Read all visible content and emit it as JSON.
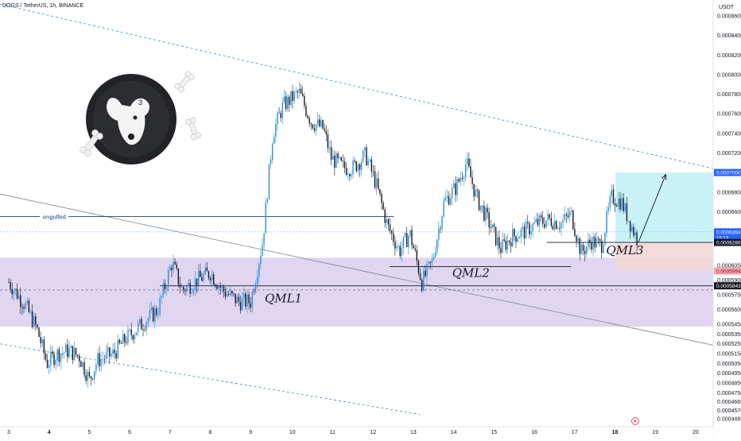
{
  "header": {
    "symbol_line": "DOGS / TetherUS, 1h, BINANCE",
    "currency": "USDT"
  },
  "colors": {
    "up": "#2a8fd8",
    "down": "#131722",
    "zone": "#d6c8ee",
    "target": "#bfeef7",
    "stop": "#f3d6d6",
    "channel_dotted": "#2a8fd8",
    "diagonal": "#8a8f99",
    "engulfed_line": "#1f3a8a",
    "badge_blue": "#2962ff",
    "badge_dark": "#131722",
    "badge_red": "#f7a7ae"
  },
  "chart_data": {
    "type": "candlestick",
    "title": "DOGS / TetherUS, 1h, BINANCE",
    "xlabel": "",
    "ylabel": "USDT",
    "x_ticks": [
      "3",
      "4",
      "5",
      "6",
      "7",
      "8",
      "9",
      "10",
      "11",
      "12",
      "13",
      "14",
      "15",
      "16",
      "17",
      "18",
      "19",
      "20"
    ],
    "y_ticks": [
      "0.0008600",
      "0.0008400",
      "0.0008200",
      "0.0008000",
      "0.0007800",
      "0.0007600",
      "0.0007400",
      "0.0007200",
      "0.0006800",
      "0.0006600",
      "0.0006400",
      "0.0006050",
      "0.0005900",
      "0.0005750",
      "0.0005600",
      "0.0005450",
      "0.0005350",
      "0.0005250",
      "0.0005150",
      "0.0005050",
      "0.0004950",
      "0.0004850",
      "0.0004750",
      "0.0004660",
      "0.0004570",
      "0.0004485"
    ],
    "price_badges": [
      {
        "label": "0.0007000",
        "style": "blue"
      },
      {
        "label": "0.0006394",
        "sub": "15:13",
        "style": "blue"
      },
      {
        "label": "0.0006286",
        "style": "dark"
      },
      {
        "label": "0.0005994",
        "style": "red"
      },
      {
        "label": "0.0005843",
        "style": "dark"
      }
    ],
    "annotations": [
      "engulfed",
      "QML1",
      "QML2",
      "QML3"
    ],
    "day_range": [
      3,
      20
    ],
    "key_levels": {
      "engulfed": 0.000655,
      "qml1": 0.0005843,
      "qml2": 0.000604,
      "qml3": 0.0006286,
      "entry": 0.0006286,
      "target": 0.0007,
      "stop": 0.0005994,
      "zone_top": 0.000613,
      "zone_bottom": 0.0005425
    },
    "price_path": [
      {
        "d": 3.0,
        "p": 0.000588
      },
      {
        "d": 3.4,
        "p": 0.000565
      },
      {
        "d": 3.7,
        "p": 0.00054
      },
      {
        "d": 3.95,
        "p": 0.000505
      },
      {
        "d": 4.2,
        "p": 0.000515
      },
      {
        "d": 4.5,
        "p": 0.000518
      },
      {
        "d": 4.75,
        "p": 0.000512
      },
      {
        "d": 5.0,
        "p": 0.000488
      },
      {
        "d": 5.2,
        "p": 0.000508
      },
      {
        "d": 5.6,
        "p": 0.000515
      },
      {
        "d": 5.9,
        "p": 0.00053
      },
      {
        "d": 6.3,
        "p": 0.000545
      },
      {
        "d": 6.7,
        "p": 0.00056
      },
      {
        "d": 7.05,
        "p": 0.000608
      },
      {
        "d": 7.3,
        "p": 0.00058
      },
      {
        "d": 7.6,
        "p": 0.000588
      },
      {
        "d": 8.0,
        "p": 0.000598
      },
      {
        "d": 8.3,
        "p": 0.00058
      },
      {
        "d": 8.7,
        "p": 0.000568
      },
      {
        "d": 9.0,
        "p": 0.000568
      },
      {
        "d": 9.3,
        "p": 0.00063
      },
      {
        "d": 9.55,
        "p": 0.00074
      },
      {
        "d": 9.8,
        "p": 0.000768
      },
      {
        "d": 10.2,
        "p": 0.000782
      },
      {
        "d": 10.5,
        "p": 0.000752
      },
      {
        "d": 10.8,
        "p": 0.000745
      },
      {
        "d": 11.0,
        "p": 0.000715
      },
      {
        "d": 11.3,
        "p": 0.000705
      },
      {
        "d": 11.55,
        "p": 0.000705
      },
      {
        "d": 11.85,
        "p": 0.000718
      },
      {
        "d": 12.1,
        "p": 0.00069
      },
      {
        "d": 12.4,
        "p": 0.000645
      },
      {
        "d": 12.7,
        "p": 0.00062
      },
      {
        "d": 12.95,
        "p": 0.000638
      },
      {
        "d": 13.25,
        "p": 0.000588
      },
      {
        "d": 13.5,
        "p": 0.000608
      },
      {
        "d": 13.8,
        "p": 0.00067
      },
      {
        "d": 14.1,
        "p": 0.000685
      },
      {
        "d": 14.35,
        "p": 0.00071
      },
      {
        "d": 14.6,
        "p": 0.000675
      },
      {
        "d": 14.9,
        "p": 0.00065
      },
      {
        "d": 15.2,
        "p": 0.000622
      },
      {
        "d": 15.5,
        "p": 0.000635
      },
      {
        "d": 15.8,
        "p": 0.00064
      },
      {
        "d": 16.1,
        "p": 0.000648
      },
      {
        "d": 16.4,
        "p": 0.000652
      },
      {
        "d": 16.7,
        "p": 0.000648
      },
      {
        "d": 16.95,
        "p": 0.000658
      },
      {
        "d": 17.2,
        "p": 0.000618
      },
      {
        "d": 17.45,
        "p": 0.00063
      },
      {
        "d": 17.7,
        "p": 0.000625
      },
      {
        "d": 17.95,
        "p": 0.000675
      },
      {
        "d": 18.2,
        "p": 0.00067
      },
      {
        "d": 18.45,
        "p": 0.000645
      },
      {
        "d": 18.62,
        "p": 0.000629
      }
    ],
    "projection": [
      {
        "d": 18.62,
        "p": 0.0006286
      },
      {
        "d": 19.3,
        "p": 0.000698
      }
    ],
    "channel_upper": [
      {
        "d": 3.0,
        "p": 0.000872
      },
      {
        "d": 20.9,
        "p": 0.0007
      }
    ],
    "channel_lower": [
      {
        "d": 3.0,
        "p": 0.000525
      },
      {
        "d": 13.2,
        "p": 0.000453
      }
    ],
    "diagonal_line": [
      {
        "d": 3.0,
        "p": 0.000678
      },
      {
        "d": 20.9,
        "p": 0.00052
      }
    ],
    "grid": false,
    "legend": "none"
  }
}
